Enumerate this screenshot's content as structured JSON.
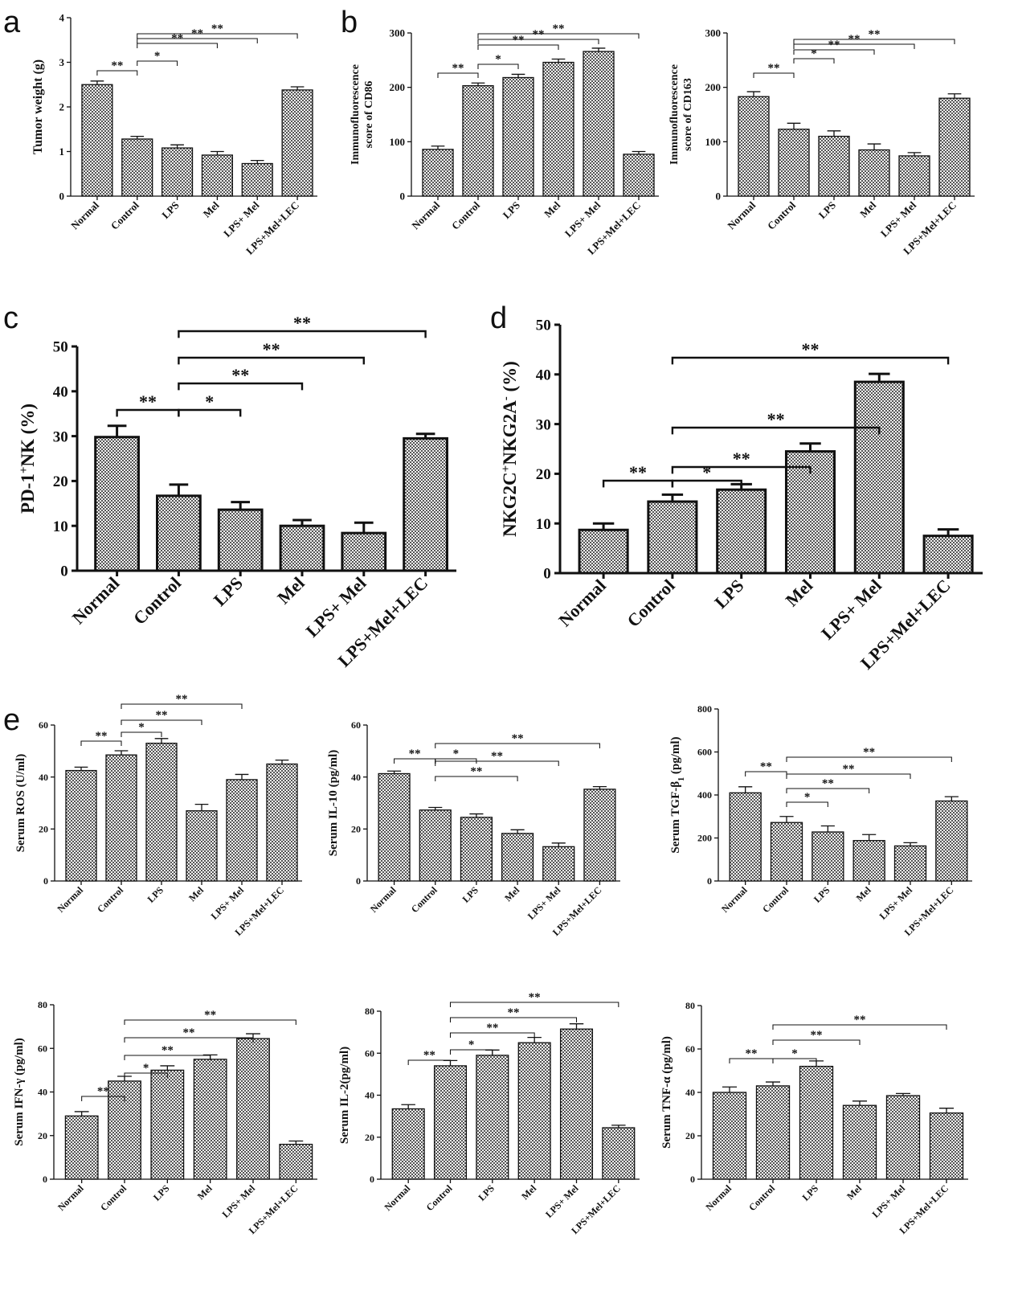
{
  "panel_letters": [
    "a",
    "b",
    "c",
    "d",
    "e"
  ],
  "chart_data": [
    {
      "type": "bar",
      "panel": "a",
      "categories": [
        "Normal",
        "Control",
        "LPS",
        "Mel",
        "LPS+ Mel",
        "LPS+Mel+LEC"
      ],
      "values": [
        2.5,
        1.28,
        1.08,
        0.92,
        0.73,
        2.38
      ],
      "errors": [
        0.08,
        0.06,
        0.07,
        0.08,
        0.07,
        0.07
      ],
      "ylabel": "Tumor weight (g)",
      "ylim": [
        0,
        4
      ],
      "yticks": [
        0,
        1,
        2,
        3,
        4
      ],
      "significance": [
        {
          "from": 0,
          "to": 1,
          "label": "**"
        },
        {
          "from": 1,
          "to": 2,
          "label": "*"
        },
        {
          "from": 1,
          "to": 3,
          "label": "**"
        },
        {
          "from": 1,
          "to": 4,
          "label": "**"
        },
        {
          "from": 1,
          "to": 5,
          "label": "**"
        }
      ]
    },
    {
      "type": "bar",
      "panel": "b",
      "categories": [
        "Normal",
        "Control",
        "LPS",
        "Mel",
        "LPS+ Mel",
        "LPS+Mel+LEC"
      ],
      "values": [
        86,
        203,
        218,
        246,
        266,
        77
      ],
      "errors": [
        6,
        5,
        6,
        6,
        6,
        5
      ],
      "ylabel_lines": [
        "Immunofluorescence",
        "score of CD86"
      ],
      "ylim": [
        0,
        300
      ],
      "yticks": [
        0,
        100,
        200,
        300
      ],
      "significance": [
        {
          "from": 0,
          "to": 1,
          "label": "**"
        },
        {
          "from": 1,
          "to": 2,
          "label": "*"
        },
        {
          "from": 1,
          "to": 3,
          "label": "**"
        },
        {
          "from": 1,
          "to": 4,
          "label": "**"
        },
        {
          "from": 1,
          "to": 5,
          "label": "**"
        }
      ]
    },
    {
      "type": "bar",
      "panel": "b",
      "categories": [
        "Normal",
        "Control",
        "LPS",
        "Mel",
        "LPS+ Mel",
        "LPS+Mel+LEC"
      ],
      "values": [
        183,
        123,
        110,
        85,
        74,
        180
      ],
      "errors": [
        9,
        11,
        10,
        11,
        6,
        8
      ],
      "ylabel_lines": [
        "Immunofluorescence",
        "score of CD163"
      ],
      "ylim": [
        0,
        300
      ],
      "yticks": [
        0,
        100,
        200,
        300
      ],
      "significance": [
        {
          "from": 0,
          "to": 1,
          "label": "**"
        },
        {
          "from": 1,
          "to": 2,
          "label": "*"
        },
        {
          "from": 1,
          "to": 3,
          "label": "**"
        },
        {
          "from": 1,
          "to": 4,
          "label": "**"
        },
        {
          "from": 1,
          "to": 5,
          "label": "**"
        }
      ]
    },
    {
      "type": "bar",
      "panel": "c",
      "categories": [
        "Normal",
        "Control",
        "LPS",
        "Mel",
        "LPS+ Mel",
        "LPS+Mel+LEC"
      ],
      "values": [
        29.8,
        16.7,
        13.6,
        10.0,
        8.4,
        29.5
      ],
      "errors": [
        2.5,
        2.5,
        1.7,
        1.3,
        2.3,
        1.0
      ],
      "ylabel_parts": [
        "PD-1",
        "+",
        "NK (%)"
      ],
      "ylim": [
        0,
        50
      ],
      "yticks": [
        0,
        10,
        20,
        30,
        40,
        50
      ],
      "significance": [
        {
          "from": 0,
          "to": 1,
          "label": "**"
        },
        {
          "from": 1,
          "to": 2,
          "label": "*"
        },
        {
          "from": 1,
          "to": 3,
          "label": "**"
        },
        {
          "from": 1,
          "to": 4,
          "label": "**"
        },
        {
          "from": 1,
          "to": 5,
          "label": "**"
        }
      ]
    },
    {
      "type": "bar",
      "panel": "d",
      "categories": [
        "Normal",
        "Control",
        "LPS",
        "Mel",
        "LPS+ Mel",
        "LPS+Mel+LEC"
      ],
      "values": [
        8.7,
        14.4,
        16.8,
        24.5,
        38.5,
        7.5
      ],
      "errors": [
        1.3,
        1.4,
        1.1,
        1.6,
        1.6,
        1.3
      ],
      "ylabel_parts": [
        "NKG2C",
        "+",
        "NKG2A",
        "-",
        " (%)"
      ],
      "ylim": [
        0,
        50
      ],
      "yticks": [
        0,
        10,
        20,
        30,
        40,
        50
      ],
      "significance": [
        {
          "from": 0,
          "to": 1,
          "label": "**"
        },
        {
          "from": 1,
          "to": 2,
          "label": "*"
        },
        {
          "from": 1,
          "to": 3,
          "label": "**"
        },
        {
          "from": 1,
          "to": 4,
          "label": "**"
        },
        {
          "from": 1,
          "to": 5,
          "label": "**"
        }
      ]
    },
    {
      "type": "bar",
      "panel": "e",
      "categories": [
        "Normal",
        "Control",
        "LPS",
        "Mel",
        "LPS+ Mel",
        "LPS+Mel+LEC"
      ],
      "values": [
        42.5,
        48.5,
        53,
        27,
        39,
        45
      ],
      "errors": [
        1.3,
        1.6,
        1.8,
        2.5,
        2,
        1.5
      ],
      "ylabel": "Serum ROS (U/ml)",
      "ylim": [
        0,
        60
      ],
      "yticks": [
        0,
        20,
        40,
        60
      ],
      "significance": [
        {
          "from": 0,
          "to": 1,
          "label": "**"
        },
        {
          "from": 1,
          "to": 2,
          "label": "*"
        },
        {
          "from": 1,
          "to": 3,
          "label": "**"
        },
        {
          "from": 1,
          "to": 4,
          "label": "**"
        }
      ]
    },
    {
      "type": "bar",
      "panel": "e",
      "categories": [
        "Normal",
        "Control",
        "LPS",
        "Mel",
        "LPS+ Mel",
        "LPS+Mel+LEC"
      ],
      "values": [
        41.3,
        27.3,
        24.5,
        18.3,
        13.2,
        35.3
      ],
      "errors": [
        1,
        1,
        1.3,
        1.4,
        1.4,
        1
      ],
      "ylabel": "Serum IL-10 (pg/ml)",
      "ylim": [
        0,
        60
      ],
      "yticks": [
        0,
        20,
        40,
        60
      ],
      "significance": [
        {
          "from": 0,
          "to": 1,
          "label": "**"
        },
        {
          "from": 1,
          "to": 2,
          "label": "*"
        },
        {
          "from": 1,
          "to": 3,
          "label": "**"
        },
        {
          "from": 1,
          "to": 4,
          "label": "**"
        },
        {
          "from": 1,
          "to": 5,
          "label": "**"
        }
      ]
    },
    {
      "type": "bar",
      "panel": "e",
      "categories": [
        "Normal",
        "Control",
        "LPS",
        "Mel",
        "LPS+ Mel",
        "LPS+Mel+LEC"
      ],
      "values": [
        410,
        272,
        228,
        188,
        163,
        372
      ],
      "errors": [
        28,
        28,
        28,
        28,
        15,
        20
      ],
      "ylabel_parts": [
        "Serum TGF-β",
        "1",
        " (pg/ml)"
      ],
      "ylim": [
        0,
        800
      ],
      "yticks": [
        0,
        200,
        400,
        600,
        800
      ],
      "significance": [
        {
          "from": 0,
          "to": 1,
          "label": "**"
        },
        {
          "from": 1,
          "to": 2,
          "label": "*"
        },
        {
          "from": 1,
          "to": 3,
          "label": "**"
        },
        {
          "from": 1,
          "to": 4,
          "label": "**"
        },
        {
          "from": 1,
          "to": 5,
          "label": "**"
        }
      ]
    },
    {
      "type": "bar",
      "panel": "e",
      "categories": [
        "Normal",
        "Control",
        "LPS",
        "Mel",
        "LPS+ Mel",
        "LPS+Mel+LEC"
      ],
      "values": [
        29,
        45,
        50,
        55,
        64.5,
        16
      ],
      "errors": [
        2,
        2.2,
        2,
        2,
        2.2,
        1.5
      ],
      "ylabel": "Serum IFN-γ (pg/ml)",
      "ylim": [
        0,
        80
      ],
      "yticks": [
        0,
        20,
        40,
        60,
        80
      ],
      "significance": [
        {
          "from": 0,
          "to": 1,
          "label": "**"
        },
        {
          "from": 1,
          "to": 2,
          "label": "*"
        },
        {
          "from": 1,
          "to": 3,
          "label": "**"
        },
        {
          "from": 1,
          "to": 4,
          "label": "**"
        },
        {
          "from": 1,
          "to": 5,
          "label": "**"
        }
      ]
    },
    {
      "type": "bar",
      "panel": "e",
      "categories": [
        "Normal",
        "Control",
        "LPS",
        "Mel",
        "LPS+ Mel",
        "LPS+Mel+LEC"
      ],
      "values": [
        33.5,
        54,
        59,
        65,
        71.5,
        24.5
      ],
      "errors": [
        2,
        2.5,
        2.5,
        2.5,
        2.5,
        1.2
      ],
      "ylabel": "Serum IL-2(pg/ml)",
      "ylim": [
        0,
        80
      ],
      "yticks": [
        0,
        20,
        40,
        60,
        80
      ],
      "significance": [
        {
          "from": 0,
          "to": 1,
          "label": "**"
        },
        {
          "from": 1,
          "to": 2,
          "label": "*"
        },
        {
          "from": 1,
          "to": 3,
          "label": "**"
        },
        {
          "from": 1,
          "to": 4,
          "label": "**"
        },
        {
          "from": 1,
          "to": 5,
          "label": "**"
        }
      ]
    },
    {
      "type": "bar",
      "panel": "e",
      "categories": [
        "Normal",
        "Control",
        "LPS",
        "Mel",
        "LPS+ Mel",
        "LPS+Mel+LEC"
      ],
      "values": [
        40,
        43,
        52,
        34,
        38.5,
        30.5
      ],
      "errors": [
        2.5,
        1.8,
        2.5,
        2,
        1,
        2.2
      ],
      "ylabel": "Serum TNF-α (pg/ml)",
      "ylim": [
        0,
        80
      ],
      "yticks": [
        0,
        20,
        40,
        60,
        80
      ],
      "significance": [
        {
          "from": 0,
          "to": 1,
          "label": "**"
        },
        {
          "from": 1,
          "to": 2,
          "label": "*"
        },
        {
          "from": 1,
          "to": 3,
          "label": "**"
        },
        {
          "from": 1,
          "to": 5,
          "label": "**"
        }
      ]
    }
  ]
}
